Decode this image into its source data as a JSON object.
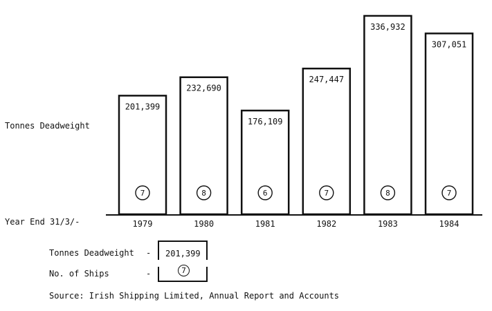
{
  "chart_data": {
    "type": "bar",
    "categories": [
      "1979",
      "1980",
      "1981",
      "1982",
      "1983",
      "1984"
    ],
    "series": [
      {
        "values": [
          201399,
          232690,
          176109,
          247447,
          336932,
          307051
        ]
      }
    ],
    "value_labels": [
      "201,399",
      "232,690",
      "176,109",
      "247,447",
      "336,932",
      "307,051"
    ],
    "ship_counts": [
      "7",
      "8",
      "6",
      "7",
      "8",
      "7"
    ],
    "ylabel": "Tonnes Deadweight",
    "xlabel": "Year End 31/3/-"
  },
  "legend": {
    "tonnes_label": "Tonnes Deadweight",
    "ships_label": "No. of Ships",
    "dash": "-",
    "example_value": "201,399",
    "example_ships": "7"
  },
  "source": "Source: Irish Shipping Limited, Annual Report and Accounts",
  "colors": {
    "ink": "#111111",
    "background": "#ffffff"
  }
}
